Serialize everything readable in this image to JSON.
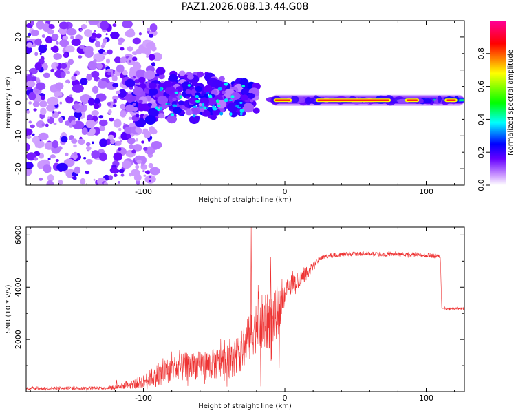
{
  "chart_data": [
    {
      "type": "heatmap",
      "title": "PAZ1.2026.088.13.44.G08",
      "xlabel": "Height of straight line (km)",
      "ylabel": "Frequency (Hz)",
      "xlim": [
        -183,
        127
      ],
      "ylim": [
        -25,
        25
      ],
      "xticks": [
        -100,
        0,
        100
      ],
      "yticks": [
        -20,
        -10,
        0,
        10,
        20
      ],
      "colorbar": {
        "label": "Normalized spectral amplitude",
        "range": [
          0,
          1
        ],
        "ticks": [
          0.0,
          0.2,
          0.4,
          0.6,
          0.8
        ],
        "colormap": [
          "#ffffff",
          "#cc99ff",
          "#6600ff",
          "#0000ff",
          "#00ffff",
          "#00ff00",
          "#ffff00",
          "#ff0000",
          "#ff0099"
        ]
      },
      "ridge": {
        "description_values": {
          "x_start": -10,
          "x_end": 127,
          "frequency_hz": 0.8
        },
        "bright_segments_x": [
          [
            -8,
            5
          ],
          [
            22,
            75
          ],
          [
            85,
            95
          ],
          [
            113,
            122
          ]
        ]
      },
      "scatter_region": {
        "x_start": -183,
        "x_end": -100,
        "frequency_span": [
          -25,
          25
        ]
      },
      "transition_region": {
        "x_start": -110,
        "x_end": -20,
        "frequency_span": [
          -15,
          12
        ]
      }
    },
    {
      "type": "line",
      "xlabel": "Height of straight line (km)",
      "ylabel": "SNR (10 * v/v)",
      "xlim": [
        -183,
        127
      ],
      "ylim": [
        0,
        6300
      ],
      "xticks": [
        -100,
        0,
        100
      ],
      "yticks": [
        2000,
        4000,
        6000
      ],
      "series": [
        {
          "name": "SNR",
          "color": "#ee3333",
          "envelope": {
            "x": [
              -183,
              -130,
              -120,
              -110,
              -100,
              -90,
              -80,
              -70,
              -60,
              -50,
              -40,
              -35,
              -30,
              -25,
              -22,
              -20,
              -15,
              -10,
              -5,
              0,
              5,
              10,
              15,
              20,
              25,
              30,
              40,
              50,
              60,
              70,
              80,
              90,
              100,
              110,
              111,
              115,
              120,
              127
            ],
            "mean": [
              120,
              140,
              170,
              250,
              400,
              650,
              850,
              950,
              1000,
              1050,
              1150,
              1300,
              1600,
              2000,
              2400,
              2700,
              2600,
              2700,
              3000,
              3800,
              4100,
              4300,
              4500,
              4800,
              5100,
              5200,
              5250,
              5270,
              5280,
              5270,
              5250,
              5240,
              5220,
              5200,
              3200,
              3170,
              3180,
              3180
            ],
            "noise": [
              60,
              60,
              80,
              150,
              250,
              450,
              500,
              550,
              550,
              600,
              650,
              700,
              800,
              900,
              1000,
              1200,
              1100,
              1100,
              900,
              400,
              350,
              300,
              250,
              150,
              90,
              90,
              80,
              80,
              80,
              80,
              80,
              80,
              80,
              80,
              50,
              50,
              50,
              50
            ]
          },
          "peaks": [
            {
              "x": -23.8,
              "y": 6300
            },
            {
              "x": -10,
              "y": 5150
            },
            {
              "x": -17,
              "y": 200
            },
            {
              "x": -4,
              "y": 900
            },
            {
              "x": -119,
              "y": 450
            }
          ]
        }
      ]
    }
  ]
}
